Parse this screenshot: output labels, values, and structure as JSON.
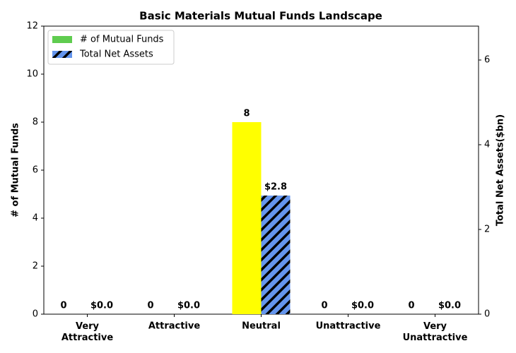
{
  "chart_data": {
    "type": "bar",
    "title": "Basic Materials Mutual Funds Landscape",
    "categories": [
      "Very\nAttractive",
      "Attractive",
      "Neutral",
      "Unattractive",
      "Very\nUnattractive"
    ],
    "series": [
      {
        "name": "# of Mutual Funds",
        "color": "#5fcc4f",
        "point_colors": [
          "#5fcc4f",
          "#5fcc4f",
          "#ffff00",
          "#5fcc4f",
          "#5fcc4f"
        ],
        "values": [
          0,
          0,
          8,
          0,
          0
        ]
      },
      {
        "name": "Total Net Assets",
        "color": "#6495ed",
        "hatch": true,
        "axis": "y2",
        "values": [
          0,
          0,
          2.8,
          0,
          0
        ],
        "value_labels": [
          "$0.0",
          "$0.0",
          "$2.8",
          "$0.0",
          "$0.0"
        ]
      }
    ],
    "ylabel": "# of Mutual Funds",
    "y2label": "Total Net Assets($bn)",
    "ylim": [
      0,
      12
    ],
    "yticks": [
      0,
      2,
      4,
      6,
      8,
      10,
      12
    ],
    "y2lim": [
      0,
      6.8
    ],
    "y2ticks": [
      0,
      2,
      4,
      6
    ],
    "legend": "upper left",
    "grid": false
  }
}
